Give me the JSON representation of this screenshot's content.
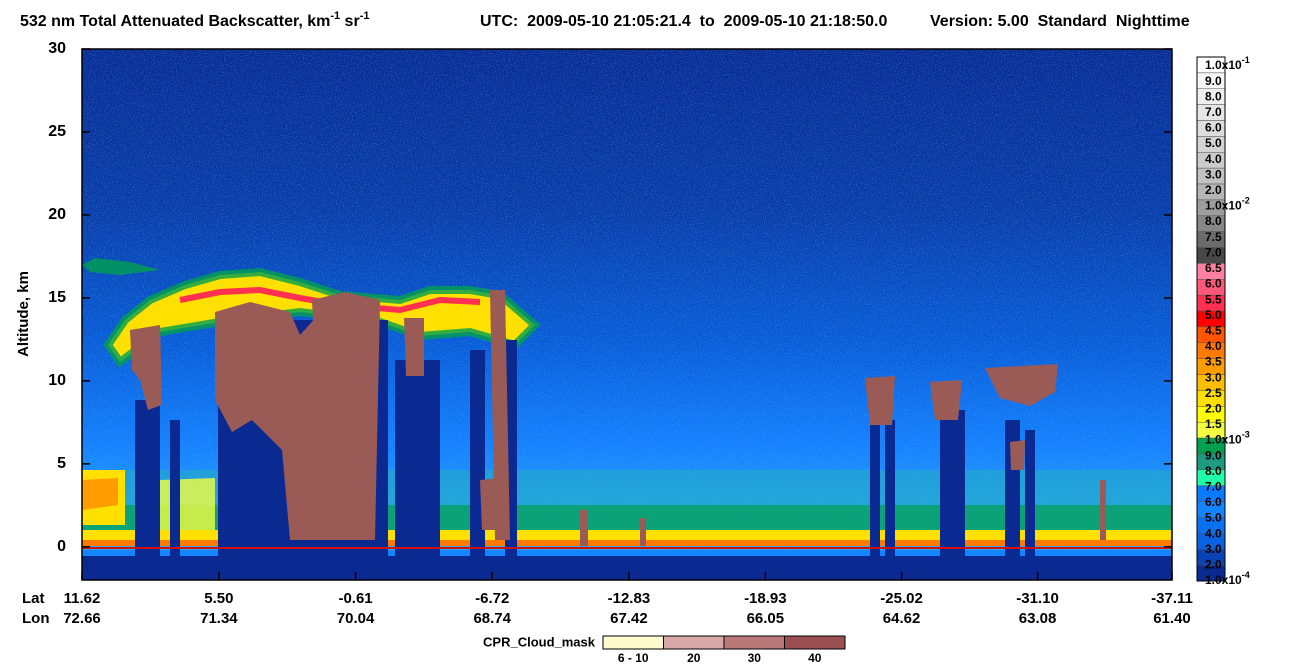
{
  "chart_data": {
    "type": "curtain",
    "title": {
      "text": "532 nm Total Attenuated Backscatter, km",
      "exp1": "-1",
      "unit2": " sr",
      "exp2": "-1"
    },
    "utc": "UTC:  2009-05-10 21:05:21.4  to  2009-05-10 21:18:50.0",
    "version": "Version: 5.00  Standard  Nighttime",
    "ylabel": "Altitude, km",
    "ylim": [
      -2,
      30
    ],
    "yticks": [
      0,
      5,
      10,
      15,
      20,
      25,
      30
    ],
    "xlabel": "Lat",
    "x2label": "Lon",
    "xlim": [
      11.62,
      -37.11
    ],
    "xticks": [
      11.62,
      {
        "value": 5.5,
        "label": "5.50"
      },
      -0.61,
      -6.72,
      -12.83,
      -18.93,
      -25.02,
      {
        "value": -31.1,
        "label": "-31.10"
      },
      -37.11
    ],
    "x2ticks": [
      72.66,
      71.34,
      70.04,
      68.74,
      67.42,
      66.05,
      64.62,
      63.08,
      {
        "value": 61.4,
        "label": "61.40"
      }
    ],
    "colorbar": {
      "labels": [
        {
          "mantissa": "1.0x10",
          "exponent": "-1"
        },
        "9.0",
        "8.0",
        "7.0",
        "6.0",
        "5.0",
        "4.0",
        "3.0",
        "2.0",
        {
          "mantissa": "1.0x10",
          "exponent": "-2"
        },
        "8.0",
        "7.5",
        "7.0",
        "6.5",
        "6.0",
        "5.5",
        "5.0",
        "4.5",
        "4.0",
        "3.5",
        "3.0",
        "2.5",
        "2.0",
        "1.5",
        {
          "mantissa": "1.0x10",
          "exponent": "-3"
        },
        "9.0",
        "8.0",
        "7.0",
        "6.0",
        "5.0",
        "4.0",
        "3.0",
        "2.0",
        {
          "mantissa": "1.0x10",
          "exponent": "-4"
        }
      ],
      "colors": [
        "#ffffff",
        "#f7f7f7",
        "#efefef",
        "#e6e6e6",
        "#dddddd",
        "#d4d4d4",
        "#cbcbcb",
        "#c2c2c2",
        "#b5b5b5",
        "#9e9e9e",
        "#878787",
        "#6b6b6b",
        "#484848",
        "#ff80a0",
        "#ff5878",
        "#ff3050",
        "#ff0000",
        "#ff5500",
        "#ff7a00",
        "#ff9c00",
        "#ffbf00",
        "#ffe000",
        "#ffff00",
        "#f4ff40",
        "#00a050",
        "#1e9a80",
        "#20ffa8",
        "#0a7aff",
        "#1484ff",
        "#0a72f2",
        "#0a62e0",
        "#0a44b4",
        "#0a2a92"
      ]
    },
    "mask_legend": {
      "title": "CPR_Cloud_mask",
      "categories": [
        "6 - 10",
        "20",
        "30",
        "40"
      ],
      "colors": [
        "#fffacd",
        "#d9a9a9",
        "#b97979",
        "#9a5050"
      ]
    }
  }
}
